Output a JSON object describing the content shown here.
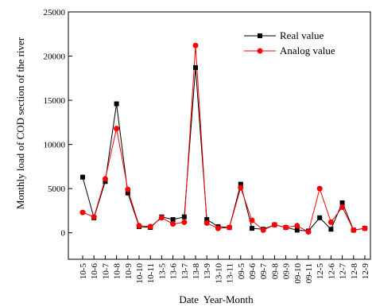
{
  "chart_data": {
    "type": "line",
    "xlabel": "Date  Year-Month",
    "ylabel": "Monthly load of COD section of the river",
    "ylim": [
      -3000,
      25000
    ],
    "yticks": [
      0,
      5000,
      10000,
      15000,
      20000,
      25000
    ],
    "grid": false,
    "legend_position": "top-right",
    "categories": [
      "10-5",
      "10-6",
      "10-7",
      "10-8",
      "10-9",
      "10-10",
      "10-11",
      "13-5",
      "13-6",
      "13-7",
      "13-8",
      "13-9",
      "13-10",
      "13-11",
      "09-5",
      "09-6",
      "09-7",
      "09-8",
      "09-9",
      "09-10",
      "09-11",
      "12-5",
      "12-6",
      "12-7",
      "12-8",
      "12-9"
    ],
    "series": [
      {
        "name": "Real value",
        "color": "#000000",
        "marker": "square",
        "values": [
          6300,
          1700,
          5800,
          14600,
          4500,
          700,
          600,
          1800,
          1500,
          1800,
          18700,
          1500,
          700,
          600,
          5500,
          500,
          400,
          900,
          600,
          300,
          200,
          1700,
          400,
          3400,
          300,
          500
        ]
      },
      {
        "name": "Analog value",
        "color": "#ff0000",
        "marker": "circle",
        "values": [
          2300,
          1800,
          6100,
          11800,
          4900,
          800,
          700,
          1700,
          1000,
          1200,
          21200,
          1100,
          500,
          600,
          5100,
          1400,
          300,
          900,
          600,
          800,
          100,
          5000,
          1200,
          2900,
          300,
          500
        ]
      }
    ]
  }
}
